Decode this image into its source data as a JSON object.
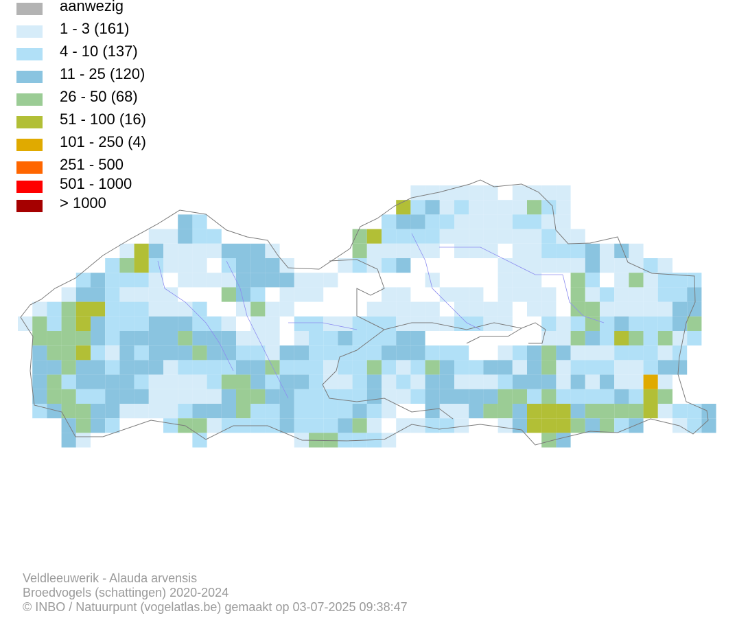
{
  "legend": {
    "items": [
      {
        "label": "aanwezig",
        "color": "#b3b3b3"
      },
      {
        "label": "1 - 3 (161)",
        "color": "#d6ecf9"
      },
      {
        "label": "4 - 10 (137)",
        "color": "#b1e0f7"
      },
      {
        "label": "11 - 25 (120)",
        "color": "#8ac4e0"
      },
      {
        "label": "26 - 50 (68)",
        "color": "#9bcc95"
      },
      {
        "label": "51 - 100 (16)",
        "color": "#b2bf36"
      },
      {
        "label": "101 - 250 (4)",
        "color": "#e0aa00"
      },
      {
        "label": "251 - 500",
        "color": "#ff6600"
      },
      {
        "label": "501 - 1000",
        "color": "#ff0000"
      },
      {
        "label": "> 1000",
        "color": "#a50000"
      }
    ]
  },
  "caption": {
    "species": "Veldleeuwerik - Alauda arvensis",
    "dataset": "Broedvogels (schattingen) 2020-2024",
    "credit": "© INBO / Natuurpunt (vogelatlas.be) gemaakt op 03-07-2025 09:38:47"
  },
  "colors": {
    "border": "#7a7a7a",
    "river": "#8c8cf0",
    "caption_text": "#9a9a9a"
  }
}
